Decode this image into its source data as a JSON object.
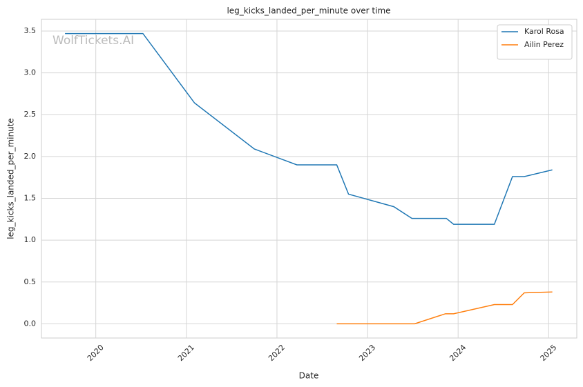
{
  "chart_data": {
    "type": "line",
    "title": "leg_kicks_landed_per_minute over time",
    "xlabel": "Date",
    "ylabel": "leg_kicks_landed_per_minute",
    "watermark": "WolfTickets.AI",
    "series": [
      {
        "name": "Karol Rosa",
        "color": "#1f77b4",
        "x": [
          2019.66,
          2020.52,
          2021.09,
          2021.75,
          2022.22,
          2022.66,
          2022.79,
          2023.29,
          2023.49,
          2023.87,
          2023.95,
          2024.4,
          2024.6,
          2024.73,
          2025.04
        ],
        "values": [
          3.47,
          3.47,
          2.64,
          2.09,
          1.9,
          1.9,
          1.55,
          1.4,
          1.26,
          1.26,
          1.19,
          1.19,
          1.76,
          1.76,
          1.84
        ]
      },
      {
        "name": "Ailin Perez",
        "color": "#ff7f0e",
        "x": [
          2022.66,
          2023.52,
          2023.86,
          2023.95,
          2024.4,
          2024.6,
          2024.73,
          2025.04
        ],
        "values": [
          0,
          0,
          0.12,
          0.12,
          0.23,
          0.23,
          0.37,
          0.38
        ]
      }
    ],
    "xlim": [
      2019.4,
      2025.31
    ],
    "xticks": [
      2020,
      2021,
      2022,
      2023,
      2024,
      2025
    ],
    "ylim": [
      -0.17,
      3.64
    ],
    "yticks": [
      {
        "value": 0,
        "label": "0.0"
      },
      0.5,
      {
        "value": 1,
        "label": "1.0"
      },
      1.5,
      {
        "value": 2,
        "label": "2.0"
      },
      2.5,
      {
        "value": 3,
        "label": "3.0"
      },
      3.5
    ],
    "grid": true,
    "legend": "upper right"
  }
}
